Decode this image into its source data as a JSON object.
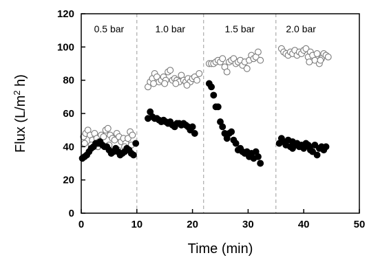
{
  "chart_data": {
    "type": "scatter",
    "xlabel": "Time (min)",
    "ylabel_prefix": "Flux (L/m",
    "ylabel_sup": "2",
    "ylabel_suffix": " h)",
    "xlim": [
      0,
      50
    ],
    "ylim": [
      0,
      120
    ],
    "xticks": [
      0,
      10,
      20,
      30,
      40,
      50
    ],
    "yticks": [
      0,
      20,
      40,
      60,
      80,
      100,
      120
    ],
    "grid": false,
    "stage_dividers_x": [
      10,
      22,
      35
    ],
    "annotations": [
      {
        "text": "0.5 bar",
        "x": 5,
        "y": 111
      },
      {
        "text": "1.0 bar",
        "x": 16,
        "y": 111
      },
      {
        "text": "1.5 bar",
        "x": 28.5,
        "y": 111
      },
      {
        "text": "2.0 bar",
        "x": 39.5,
        "y": 111
      }
    ],
    "series": [
      {
        "marker": "open-circle",
        "points": [
          [
            0.4,
            46
          ],
          [
            0.8,
            48
          ],
          [
            1.2,
            50
          ],
          [
            1.6,
            47
          ],
          [
            2.0,
            44
          ],
          [
            2.4,
            48
          ],
          [
            2.8,
            45
          ],
          [
            3.2,
            43
          ],
          [
            3.6,
            47
          ],
          [
            4.0,
            46
          ],
          [
            4.4,
            50
          ],
          [
            4.8,
            51
          ],
          [
            5.2,
            47
          ],
          [
            5.6,
            45
          ],
          [
            6.0,
            44
          ],
          [
            6.4,
            48
          ],
          [
            6.8,
            46
          ],
          [
            7.2,
            43
          ],
          [
            7.6,
            45
          ],
          [
            8.0,
            42
          ],
          [
            8.4,
            45
          ],
          [
            8.8,
            49
          ],
          [
            9.2,
            47
          ],
          [
            0.6,
            42
          ],
          [
            1.8,
            41
          ],
          [
            3.0,
            40
          ],
          [
            5.0,
            41
          ],
          [
            6.6,
            38
          ],
          [
            7.8,
            40
          ],
          [
            9.0,
            41
          ],
          [
            12.0,
            76
          ],
          [
            12.4,
            79
          ],
          [
            12.8,
            81
          ],
          [
            13.2,
            84
          ],
          [
            13.6,
            82
          ],
          [
            14.0,
            79
          ],
          [
            14.4,
            80
          ],
          [
            14.8,
            82
          ],
          [
            15.2,
            80
          ],
          [
            15.6,
            85
          ],
          [
            16.0,
            86
          ],
          [
            16.4,
            80
          ],
          [
            16.8,
            81
          ],
          [
            17.2,
            80
          ],
          [
            17.6,
            79
          ],
          [
            18.0,
            83
          ],
          [
            18.4,
            80
          ],
          [
            18.8,
            79
          ],
          [
            19.2,
            81
          ],
          [
            19.6,
            79
          ],
          [
            20.0,
            81
          ],
          [
            20.4,
            82
          ],
          [
            20.8,
            80
          ],
          [
            21.2,
            84
          ],
          [
            13.0,
            78
          ],
          [
            15.0,
            78
          ],
          [
            17.0,
            78
          ],
          [
            19.0,
            77
          ],
          [
            23.0,
            90
          ],
          [
            23.4,
            90
          ],
          [
            23.8,
            90
          ],
          [
            24.2,
            91
          ],
          [
            24.6,
            92
          ],
          [
            25.0,
            91
          ],
          [
            25.4,
            93
          ],
          [
            25.8,
            88
          ],
          [
            26.2,
            85
          ],
          [
            26.6,
            91
          ],
          [
            27.0,
            92
          ],
          [
            27.4,
            93
          ],
          [
            27.8,
            90
          ],
          [
            28.2,
            91
          ],
          [
            28.6,
            92
          ],
          [
            29.0,
            89
          ],
          [
            29.4,
            91
          ],
          [
            29.8,
            87
          ],
          [
            30.2,
            92
          ],
          [
            30.6,
            95
          ],
          [
            31.0,
            93
          ],
          [
            31.4,
            94
          ],
          [
            31.8,
            97
          ],
          [
            32.2,
            92
          ],
          [
            36.0,
            99
          ],
          [
            36.4,
            97
          ],
          [
            36.8,
            96
          ],
          [
            37.2,
            95
          ],
          [
            37.6,
            97
          ],
          [
            38.0,
            96
          ],
          [
            38.4,
            98
          ],
          [
            38.8,
            95
          ],
          [
            39.2,
            97
          ],
          [
            39.6,
            96
          ],
          [
            40.0,
            98
          ],
          [
            40.4,
            99
          ],
          [
            40.8,
            94
          ],
          [
            41.2,
            97
          ],
          [
            41.6,
            95
          ],
          [
            42.0,
            92
          ],
          [
            42.4,
            96
          ],
          [
            42.8,
            90
          ],
          [
            43.2,
            93
          ],
          [
            43.6,
            96
          ],
          [
            44.0,
            95
          ],
          [
            44.4,
            94
          ],
          [
            41.0,
            91
          ],
          [
            43.0,
            92
          ]
        ]
      },
      {
        "marker": "filled-circle",
        "points": [
          [
            0.2,
            33
          ],
          [
            0.6,
            34
          ],
          [
            1.0,
            35
          ],
          [
            1.4,
            37
          ],
          [
            1.8,
            39
          ],
          [
            2.2,
            40
          ],
          [
            2.6,
            42
          ],
          [
            3.0,
            42
          ],
          [
            3.4,
            43
          ],
          [
            3.8,
            41
          ],
          [
            4.2,
            40
          ],
          [
            4.6,
            40
          ],
          [
            5.0,
            38
          ],
          [
            5.4,
            36
          ],
          [
            5.8,
            37
          ],
          [
            6.2,
            39
          ],
          [
            6.6,
            37
          ],
          [
            7.0,
            35
          ],
          [
            7.4,
            36
          ],
          [
            7.8,
            37
          ],
          [
            8.2,
            39
          ],
          [
            8.6,
            38
          ],
          [
            9.0,
            36
          ],
          [
            9.4,
            35
          ],
          [
            9.8,
            42
          ],
          [
            12.0,
            57
          ],
          [
            12.4,
            61
          ],
          [
            12.8,
            58
          ],
          [
            13.2,
            57
          ],
          [
            13.6,
            57
          ],
          [
            14.0,
            56
          ],
          [
            14.4,
            55
          ],
          [
            14.8,
            56
          ],
          [
            15.2,
            55
          ],
          [
            15.6,
            54
          ],
          [
            16.0,
            55
          ],
          [
            16.4,
            53
          ],
          [
            16.8,
            52
          ],
          [
            17.2,
            54
          ],
          [
            17.6,
            54
          ],
          [
            18.0,
            53
          ],
          [
            18.4,
            54
          ],
          [
            18.8,
            53
          ],
          [
            19.2,
            52
          ],
          [
            19.6,
            50
          ],
          [
            20.0,
            52
          ],
          [
            20.4,
            48
          ],
          [
            23.0,
            78
          ],
          [
            23.4,
            76
          ],
          [
            23.8,
            71
          ],
          [
            24.2,
            64
          ],
          [
            24.6,
            64
          ],
          [
            25.0,
            55
          ],
          [
            25.4,
            52
          ],
          [
            25.8,
            48
          ],
          [
            26.2,
            45
          ],
          [
            26.6,
            48
          ],
          [
            27.0,
            49
          ],
          [
            27.4,
            44
          ],
          [
            27.8,
            42
          ],
          [
            28.2,
            38
          ],
          [
            28.6,
            39
          ],
          [
            29.0,
            37
          ],
          [
            29.4,
            36
          ],
          [
            29.8,
            37
          ],
          [
            30.2,
            34
          ],
          [
            30.6,
            36
          ],
          [
            31.0,
            33
          ],
          [
            31.4,
            37
          ],
          [
            31.8,
            34
          ],
          [
            32.2,
            30
          ],
          [
            35.6,
            42
          ],
          [
            36.0,
            45
          ],
          [
            36.4,
            43
          ],
          [
            36.8,
            41
          ],
          [
            37.2,
            44
          ],
          [
            37.6,
            40
          ],
          [
            38.0,
            43
          ],
          [
            38.4,
            41
          ],
          [
            38.8,
            42
          ],
          [
            39.2,
            40
          ],
          [
            39.6,
            41
          ],
          [
            40.0,
            39
          ],
          [
            40.4,
            42
          ],
          [
            40.8,
            41
          ],
          [
            41.2,
            38
          ],
          [
            41.6,
            37
          ],
          [
            42.0,
            41
          ],
          [
            42.4,
            35
          ],
          [
            42.8,
            39
          ],
          [
            43.2,
            40
          ],
          [
            43.6,
            38
          ],
          [
            44.0,
            40
          ],
          [
            38.0,
            39
          ],
          [
            41.0,
            40
          ]
        ]
      }
    ]
  }
}
